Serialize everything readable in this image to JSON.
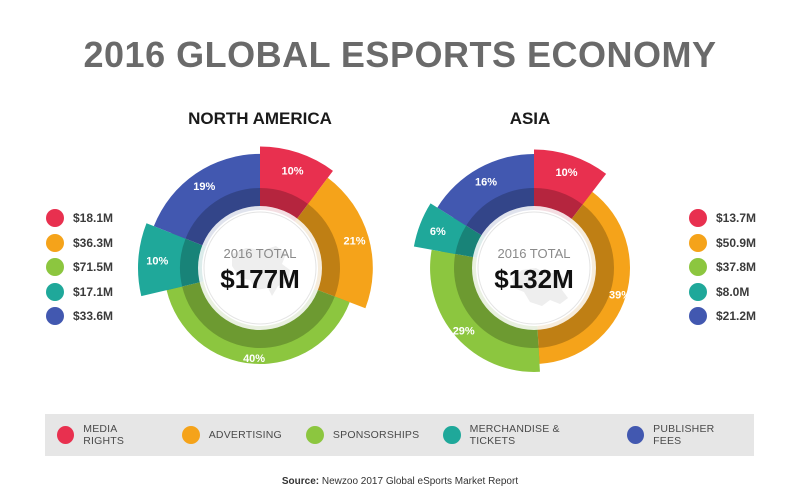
{
  "title": "2016 GLOBAL ESPORTS ECONOMY",
  "categories": [
    "MEDIA RIGHTS",
    "ADVERTISING",
    "SPONSORSHIPS",
    "MERCHANDISE & TICKETS",
    "PUBLISHER FEES"
  ],
  "colors": [
    "#e8304f",
    "#f5a31a",
    "#8cc63f",
    "#1fa89a",
    "#4258b0"
  ],
  "source": {
    "label": "Source:",
    "text": "Newzoo 2017 Global eSports Market Report"
  },
  "chart_data": [
    {
      "type": "pie",
      "title": "NORTH AMERICA",
      "center_label": "2016 TOTAL",
      "center_value": "$177M",
      "categories": [
        "MEDIA RIGHTS",
        "ADVERTISING",
        "SPONSORSHIPS",
        "MERCHANDISE & TICKETS",
        "PUBLISHER FEES"
      ],
      "values": [
        18.1,
        36.3,
        71.5,
        17.1,
        33.6
      ],
      "value_labels": [
        "$18.1M",
        "$36.3M",
        "$71.5M",
        "$17.1M",
        "$33.6M"
      ],
      "percent_labels": [
        "10%",
        "21%",
        "40%",
        "10%",
        "19%"
      ],
      "legend": "left"
    },
    {
      "type": "pie",
      "title": "ASIA",
      "center_label": "2016 TOTAL",
      "center_value": "$132M",
      "categories": [
        "MEDIA RIGHTS",
        "ADVERTISING",
        "SPONSORSHIPS",
        "MERCHANDISE & TICKETS",
        "PUBLISHER FEES"
      ],
      "values": [
        13.7,
        50.9,
        37.8,
        8.0,
        21.2
      ],
      "value_labels": [
        "$13.7M",
        "$50.9M",
        "$37.8M",
        "$8.0M",
        "$21.2M"
      ],
      "percent_labels": [
        "10%",
        "39%",
        "29%",
        "6%",
        "16%"
      ],
      "legend": "right"
    }
  ]
}
